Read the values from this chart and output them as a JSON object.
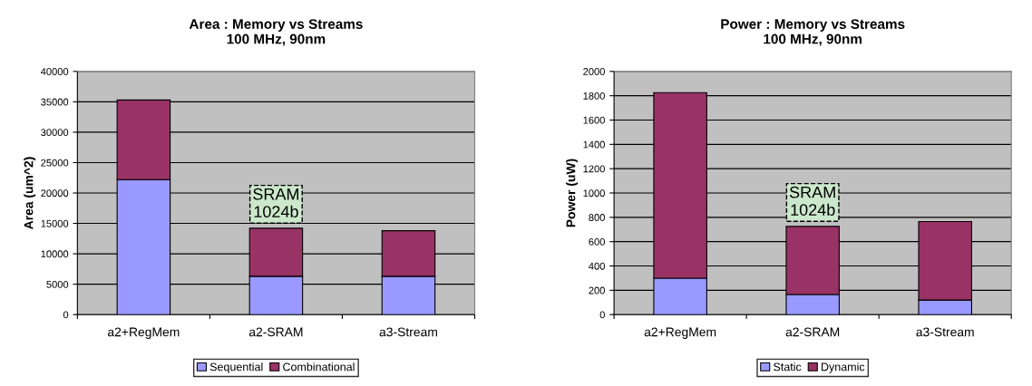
{
  "chart_data": [
    {
      "type": "bar",
      "title": "Area : Memory vs Streams\n100 MHz, 90nm",
      "ylabel": "Area (um^2)",
      "categories": [
        "a2+RegMem",
        "a2-SRAM",
        "a3-Stream"
      ],
      "stacked": true,
      "series": [
        {
          "name": "Sequential",
          "color": "#9999ff",
          "values": [
            22200,
            6300,
            6300
          ]
        },
        {
          "name": "Combinational",
          "color": "#993366",
          "values": [
            13100,
            7900,
            7500
          ]
        }
      ],
      "ylim": [
        0,
        40000
      ],
      "yticks": [
        0,
        5000,
        10000,
        15000,
        20000,
        25000,
        30000,
        35000,
        40000
      ],
      "grid": "y",
      "legend": "bottom",
      "annotations": [
        "SRAM\n1024b"
      ]
    },
    {
      "type": "bar",
      "title": "Power : Memory vs Streams\n100 MHz, 90nm",
      "ylabel": "Power (uW)",
      "categories": [
        "a2+RegMem",
        "a2-SRAM",
        "a3-Stream"
      ],
      "stacked": true,
      "series": [
        {
          "name": "Static",
          "color": "#9999ff",
          "values": [
            300,
            165,
            120
          ]
        },
        {
          "name": "Dynamic",
          "color": "#993366",
          "values": [
            1525,
            560,
            645
          ]
        }
      ],
      "ylim": [
        0,
        2000
      ],
      "yticks": [
        0,
        200,
        400,
        600,
        800,
        1000,
        1200,
        1400,
        1600,
        1800,
        2000
      ],
      "grid": "y",
      "legend": "bottom",
      "annotations": [
        "SRAM\n1024b"
      ]
    }
  ]
}
